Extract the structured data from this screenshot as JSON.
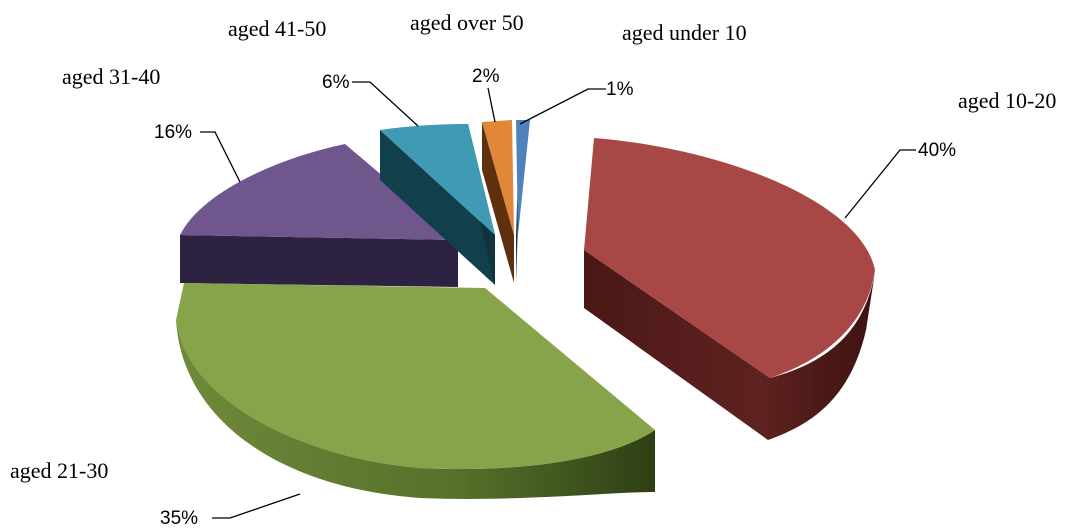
{
  "chart_data": {
    "type": "pie",
    "style": "3d-exploded",
    "title": "",
    "legend": "none",
    "slices": [
      {
        "label": "aged under 10",
        "value": 1,
        "value_label": "1%",
        "color": "#4f81bd",
        "side_color": "#1f3556"
      },
      {
        "label": "aged 10-20",
        "value": 40,
        "value_label": "40%",
        "color": "#a84846",
        "side_color": "#4c1b1a"
      },
      {
        "label": "aged 21-30",
        "value": 35,
        "value_label": "35%",
        "color": "#87a44a",
        "side_color": "#3f5220"
      },
      {
        "label": "aged 31-40",
        "value": 16,
        "value_label": "16%",
        "color": "#6f568c",
        "side_color": "#2c2140"
      },
      {
        "label": "aged 41-50",
        "value": 6,
        "value_label": "6%",
        "color": "#3e9bb3",
        "side_color": "#123f4c"
      },
      {
        "label": "aged over 50",
        "value": 2,
        "value_label": "2%",
        "color": "#e0873a",
        "side_color": "#6a3610"
      }
    ]
  }
}
